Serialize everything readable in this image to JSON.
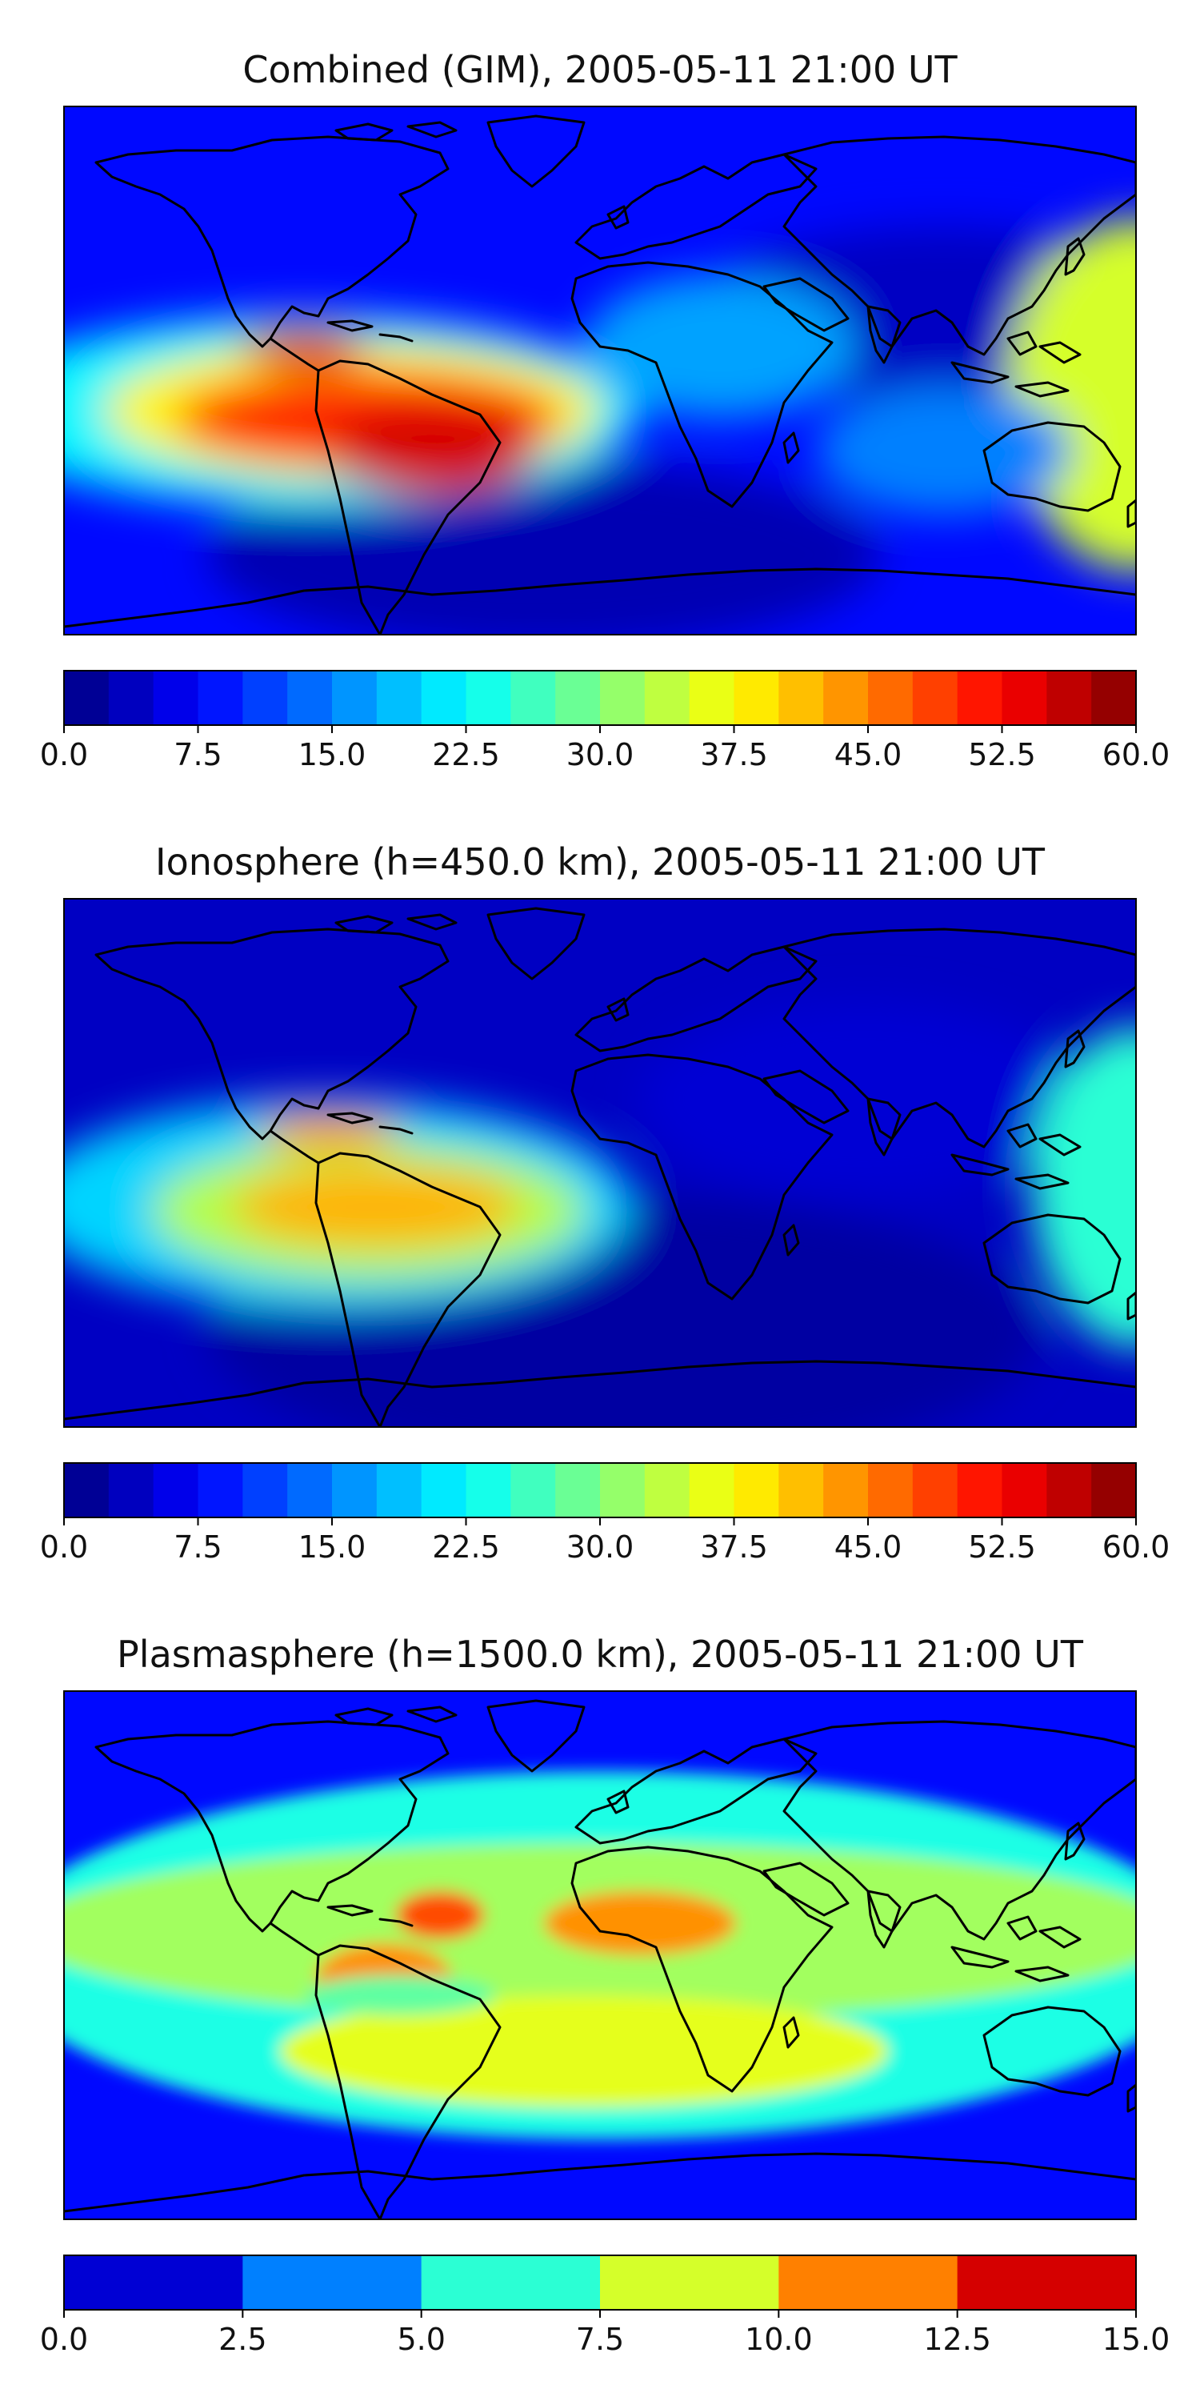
{
  "panels": [
    {
      "title": "Combined (GIM), 2005-05-11 21:00 UT",
      "colorbar": {
        "vmin": 0,
        "vmax": 60,
        "levels": 24,
        "ticks": [
          "0.0",
          "7.5",
          "15.0",
          "22.5",
          "30.0",
          "37.5",
          "45.0",
          "52.5",
          "60.0"
        ]
      }
    },
    {
      "title": "Ionosphere  (h=450.0 km), 2005-05-11 21:00 UT",
      "colorbar": {
        "vmin": 0,
        "vmax": 60,
        "levels": 24,
        "ticks": [
          "0.0",
          "7.5",
          "15.0",
          "22.5",
          "30.0",
          "37.5",
          "45.0",
          "52.5",
          "60.0"
        ]
      }
    },
    {
      "title": "Plasmasphere (h=1500.0 km), 2005-05-11 21:00 UT",
      "colorbar": {
        "vmin": 0,
        "vmax": 15,
        "levels": 6,
        "ticks": [
          "0.0",
          "2.5",
          "5.0",
          "7.5",
          "10.0",
          "12.5",
          "15.0"
        ]
      }
    }
  ],
  "chart_data": [
    {
      "type": "heatmap",
      "title": "Combined (GIM), 2005-05-11 21:00 UT",
      "projection": "global map with coastlines",
      "colormap": "jet",
      "vmin": 0,
      "vmax": 60,
      "colorbar_ticks": [
        0.0,
        7.5,
        15.0,
        22.5,
        30.0,
        37.5,
        45.0,
        52.5,
        60.0
      ],
      "features": [
        {
          "region": "equatorial American sector",
          "level": 55
        },
        {
          "region": "eastern Pacific",
          "level": 50
        },
        {
          "region": "western Pacific",
          "level": 35
        },
        {
          "region": "Africa / Indian Ocean",
          "level": 15
        },
        {
          "region": "high latitudes / southern ocean",
          "level": 5
        }
      ]
    },
    {
      "type": "heatmap",
      "title": "Ionosphere  (h=450.0 km), 2005-05-11 21:00 UT",
      "projection": "global map with coastlines",
      "colormap": "jet",
      "vmin": 0,
      "vmax": 60,
      "colorbar_ticks": [
        0.0,
        7.5,
        15.0,
        22.5,
        30.0,
        37.5,
        45.0,
        52.5,
        60.0
      ],
      "features": [
        {
          "region": "equatorial American sector",
          "level": 45
        },
        {
          "region": "eastern Pacific",
          "level": 40
        },
        {
          "region": "western Pacific",
          "level": 25
        },
        {
          "region": "Africa / Asia",
          "level": 7
        },
        {
          "region": "southern ocean",
          "level": 2
        }
      ]
    },
    {
      "type": "heatmap",
      "title": "Plasmasphere (h=1500.0 km), 2005-05-11 21:00 UT",
      "projection": "global map with coastlines",
      "colormap": "jet",
      "vmin": 0,
      "vmax": 15,
      "colorbar_ticks": [
        0.0,
        2.5,
        5.0,
        7.5,
        10.0,
        12.5,
        15.0
      ],
      "features": [
        {
          "region": "eastern Pacific",
          "level": 11
        },
        {
          "region": "north-west Africa",
          "level": 11
        },
        {
          "region": "low latitude belt",
          "level": 8
        },
        {
          "region": "mid latitudes",
          "level": 6
        },
        {
          "region": "high latitudes",
          "level": 1
        }
      ]
    }
  ]
}
